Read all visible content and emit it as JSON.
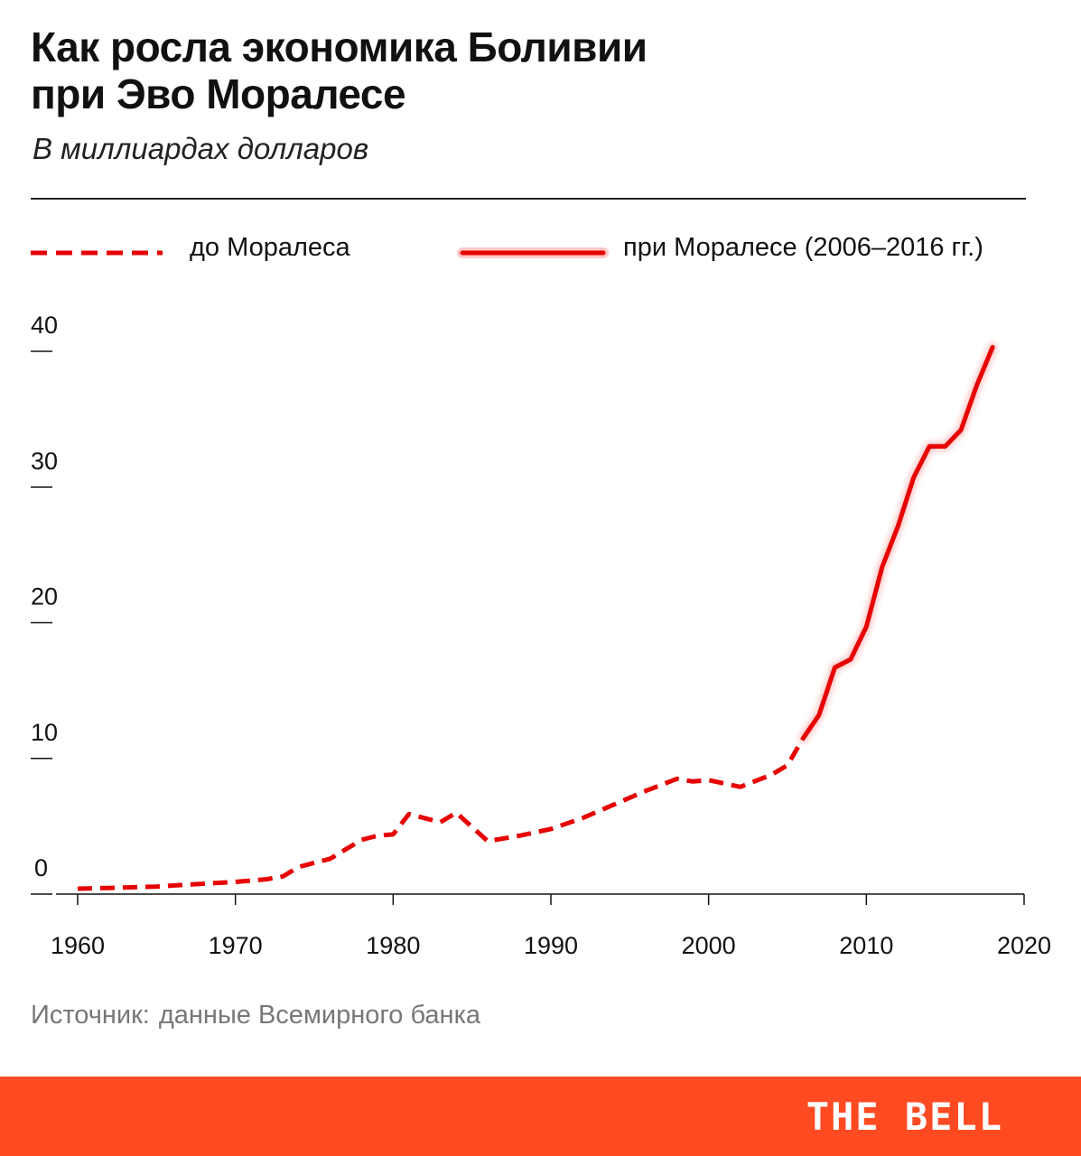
{
  "header": {
    "title_line1": "Как росла экономика Боливии",
    "title_line2": "при Эво Моралесе",
    "subtitle": "В миллиардах долларов"
  },
  "legend": {
    "before": "до Моралеса",
    "during": "при Моралесе (2006–2016 гг.)"
  },
  "source": {
    "label": "Источник:",
    "text": "данные Всемирного банка"
  },
  "footer": {
    "brand": "THE BELL"
  },
  "colors": {
    "line": "#e60000",
    "footer": "#ff4a22"
  },
  "chart_data": {
    "type": "line",
    "title": "Как росла экономика Боливии при Эво Моралесе",
    "subtitle": "В миллиардах долларов",
    "xlabel": "",
    "ylabel": "",
    "xlim": [
      1960,
      2020
    ],
    "ylim": [
      0,
      40
    ],
    "x_ticks": [
      1960,
      1970,
      1980,
      1990,
      2000,
      2010,
      2020
    ],
    "y_ticks": [
      0,
      10,
      20,
      30,
      40
    ],
    "grid": false,
    "legend_position": "top",
    "series": [
      {
        "name": "до Моралеса",
        "style": "dashed",
        "x": [
          1960,
          1962,
          1965,
          1967,
          1970,
          1972,
          1973,
          1974,
          1976,
          1978,
          1979,
          1980,
          1981,
          1983,
          1984,
          1986,
          1988,
          1990,
          1992,
          1994,
          1996,
          1998,
          1999,
          2000,
          2002,
          2004,
          2005,
          2006
        ],
        "y": [
          0.4,
          0.45,
          0.55,
          0.7,
          0.9,
          1.1,
          1.3,
          2.0,
          2.6,
          4.0,
          4.3,
          4.4,
          5.9,
          5.3,
          6.0,
          3.9,
          4.3,
          4.8,
          5.6,
          6.6,
          7.6,
          8.5,
          8.3,
          8.4,
          7.9,
          8.8,
          9.5,
          11.5
        ]
      },
      {
        "name": "при Моралесе (2006–2016 гг.)",
        "style": "solid",
        "x": [
          2006,
          2007,
          2008,
          2009,
          2010,
          2011,
          2012,
          2013,
          2014,
          2015,
          2016,
          2017,
          2018
        ],
        "y": [
          11.5,
          13.2,
          16.7,
          17.3,
          19.7,
          24.1,
          27.1,
          30.7,
          33.0,
          33.0,
          34.2,
          37.5,
          40.3
        ]
      }
    ]
  }
}
